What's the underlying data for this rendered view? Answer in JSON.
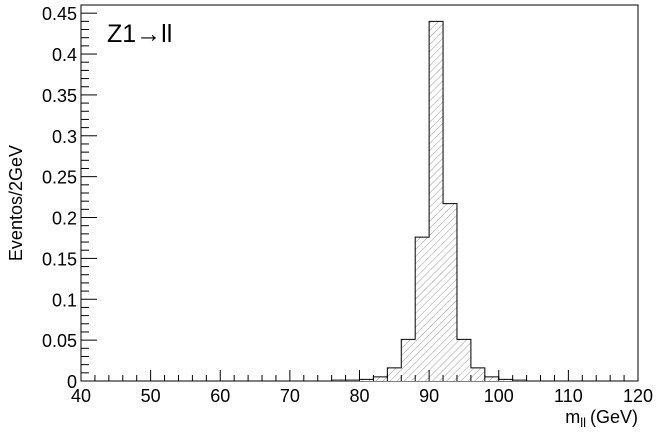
{
  "chart_data": {
    "type": "bar",
    "title": "",
    "annotation": "Z1→ll",
    "ylabel": "Eventos/2GeV",
    "xlabel_main": "m",
    "xlabel_sub": "ll",
    "xlabel_unit": "(GeV)",
    "xlim": [
      40,
      120
    ],
    "ylim": [
      0,
      0.46
    ],
    "bin_width": 2,
    "x_ticks": [
      "40",
      "50",
      "60",
      "70",
      "80",
      "90",
      "100",
      "110",
      "120"
    ],
    "y_ticks": [
      "0",
      "0.05",
      "0.1",
      "0.15",
      "0.2",
      "0.25",
      "0.3",
      "0.35",
      "0.4",
      "0.45"
    ],
    "grid": false,
    "fill_pattern": "hatched",
    "bins": [
      {
        "x": 76,
        "value": 0.001
      },
      {
        "x": 78,
        "value": 0.001
      },
      {
        "x": 80,
        "value": 0.002
      },
      {
        "x": 82,
        "value": 0.005
      },
      {
        "x": 84,
        "value": 0.016
      },
      {
        "x": 86,
        "value": 0.051
      },
      {
        "x": 88,
        "value": 0.176
      },
      {
        "x": 90,
        "value": 0.44
      },
      {
        "x": 92,
        "value": 0.217
      },
      {
        "x": 94,
        "value": 0.051
      },
      {
        "x": 96,
        "value": 0.016
      },
      {
        "x": 98,
        "value": 0.005
      },
      {
        "x": 100,
        "value": 0.002
      },
      {
        "x": 102,
        "value": 0.001
      }
    ]
  }
}
